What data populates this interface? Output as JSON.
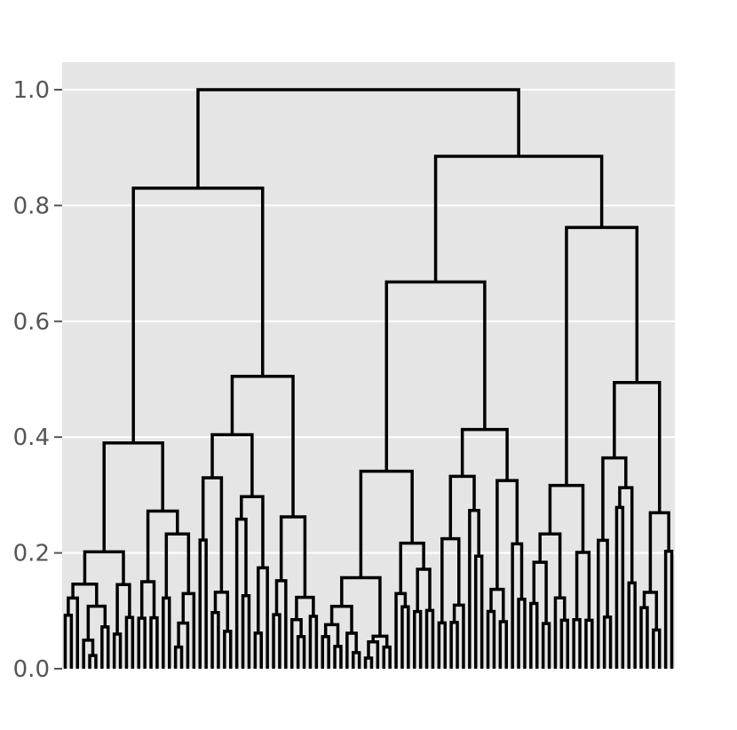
{
  "chart_data": {
    "type": "dendrogram",
    "title": "",
    "xlabel": "",
    "ylabel": "",
    "ylim": [
      0,
      1.05
    ],
    "yticks": [
      {
        "value": 0.0,
        "label": "0.0"
      },
      {
        "value": 0.2,
        "label": "0.2"
      },
      {
        "value": 0.4,
        "label": "0.4"
      },
      {
        "value": 0.6,
        "label": "0.6"
      },
      {
        "value": 0.8,
        "label": "0.8"
      },
      {
        "value": 1.0,
        "label": "1.0"
      }
    ],
    "grid": true,
    "leaf_count": 100,
    "colors": {
      "background": "#e5e5e5",
      "grid": "#ffffff",
      "link": "#000000",
      "tick": "#555555"
    },
    "root_height": 1.0,
    "major_clusters": [
      {
        "name": "left",
        "height": 0.83,
        "subclusters": [
          0.39,
          0.505
        ]
      },
      {
        "name": "right",
        "height": 0.885,
        "subclusters": [
          0.668,
          0.762
        ]
      }
    ]
  }
}
